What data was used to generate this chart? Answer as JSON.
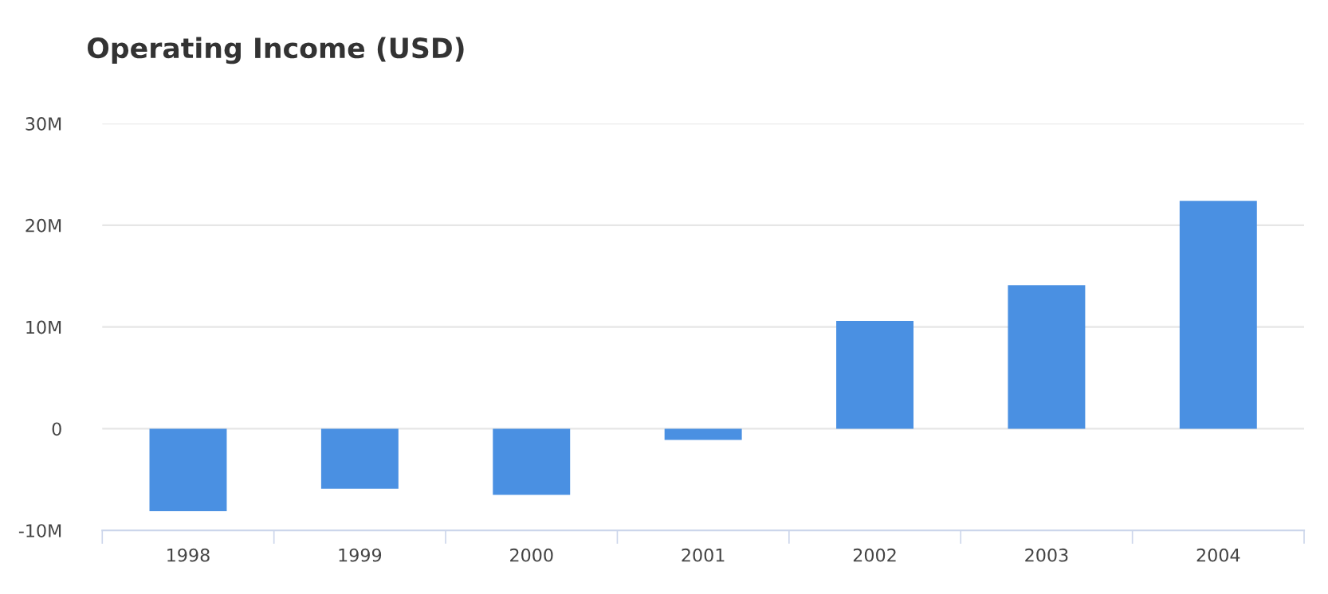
{
  "chart_data": {
    "type": "bar",
    "title": "Operating Income (USD)",
    "categories": [
      "1998",
      "1999",
      "2000",
      "2001",
      "2002",
      "2003",
      "2004"
    ],
    "values": [
      -8100000,
      -5900000,
      -6500000,
      -1100000,
      10600000,
      14100000,
      22400000
    ],
    "color": "#4a90e2",
    "ylim": [
      -10000000,
      30000000
    ],
    "yticks": [
      {
        "value": -10000000,
        "label": "-10M"
      },
      0,
      {
        "value": 10000000,
        "label": "10M"
      },
      {
        "value": 20000000,
        "label": "20M"
      },
      {
        "value": 30000000,
        "label": "30M"
      }
    ],
    "grid": "y"
  }
}
